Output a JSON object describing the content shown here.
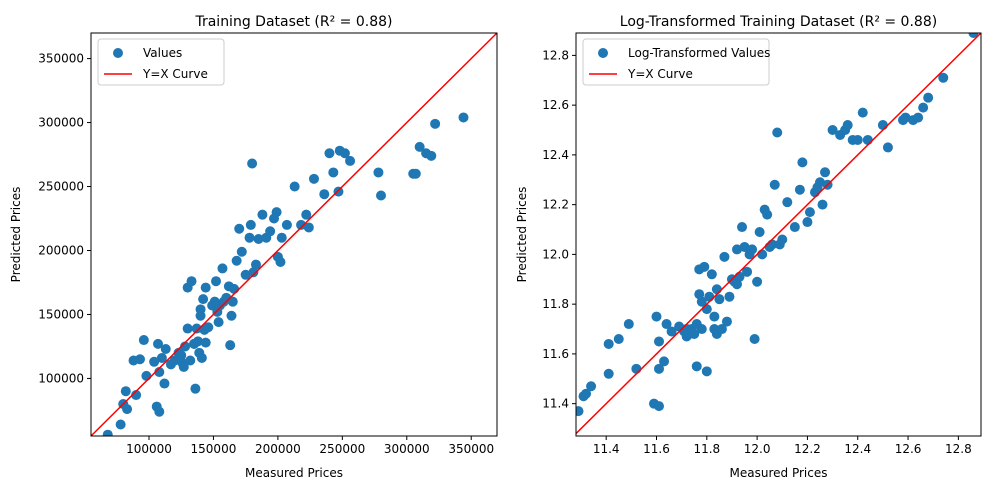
{
  "colors": {
    "points": "#1f77b4",
    "curve": "#ff0000",
    "legend_border": "#cccccc"
  },
  "chart_data": [
    {
      "type": "scatter",
      "title": "Training Dataset (R² = 0.88)",
      "xlabel": "Measured Prices",
      "ylabel": "Predicted Prices",
      "xlim": [
        55000,
        370000
      ],
      "ylim": [
        55000,
        370000
      ],
      "xticks": [
        100000,
        150000,
        200000,
        250000,
        300000,
        350000
      ],
      "yticks": [
        100000,
        150000,
        200000,
        250000,
        300000,
        350000
      ],
      "tick_labels_x": [
        "100000",
        "150000",
        "200000",
        "250000",
        "300000",
        "350000"
      ],
      "tick_labels_y": [
        "100000",
        "150000",
        "200000",
        "250000",
        "300000",
        "350000"
      ],
      "legend": {
        "placement": "top-left",
        "entries": [
          "Values",
          "Y=X Curve"
        ]
      },
      "series": [
        {
          "name": "Values",
          "points": [
            [
              68000,
              56000
            ],
            [
              78000,
              64000
            ],
            [
              80000,
              80000
            ],
            [
              82000,
              90000
            ],
            [
              83000,
              76000
            ],
            [
              88000,
              114000
            ],
            [
              90000,
              87000
            ],
            [
              93000,
              115000
            ],
            [
              96000,
              130000
            ],
            [
              98000,
              102000
            ],
            [
              104000,
              113000
            ],
            [
              106000,
              78000
            ],
            [
              107000,
              127000
            ],
            [
              108000,
              105000
            ],
            [
              108000,
              74000
            ],
            [
              110000,
              116000
            ],
            [
              112000,
              96000
            ],
            [
              113000,
              123000
            ],
            [
              117000,
              111000
            ],
            [
              120000,
              114000
            ],
            [
              123000,
              120000
            ],
            [
              125000,
              118000
            ],
            [
              126000,
              112000
            ],
            [
              127000,
              109000
            ],
            [
              128000,
              125000
            ],
            [
              130000,
              171000
            ],
            [
              130000,
              139000
            ],
            [
              132000,
              114000
            ],
            [
              133000,
              176000
            ],
            [
              135000,
              127000
            ],
            [
              135000,
              127000
            ],
            [
              136000,
              92000
            ],
            [
              137000,
              139000
            ],
            [
              138000,
              129000
            ],
            [
              139000,
              120000
            ],
            [
              140000,
              149000
            ],
            [
              140000,
              154000
            ],
            [
              141000,
              116000
            ],
            [
              142000,
              162000
            ],
            [
              143000,
              138000
            ],
            [
              144000,
              171000
            ],
            [
              144000,
              128000
            ],
            [
              146000,
              140000
            ],
            [
              149000,
              157000
            ],
            [
              151000,
              160000
            ],
            [
              152000,
              176000
            ],
            [
              153000,
              152000
            ],
            [
              154000,
              144000
            ],
            [
              155000,
              157000
            ],
            [
              157000,
              186000
            ],
            [
              158000,
              160000
            ],
            [
              160000,
              163000
            ],
            [
              162000,
              172000
            ],
            [
              163000,
              126000
            ],
            [
              164000,
              149000
            ],
            [
              165000,
              160000
            ],
            [
              166000,
              170000
            ],
            [
              168000,
              192000
            ],
            [
              170000,
              217000
            ],
            [
              172000,
              199000
            ],
            [
              175000,
              181000
            ],
            [
              178000,
              210000
            ],
            [
              179000,
              220000
            ],
            [
              180000,
              268000
            ],
            [
              181000,
              183000
            ],
            [
              183000,
              189000
            ],
            [
              185000,
              209000
            ],
            [
              188000,
              228000
            ],
            [
              191000,
              210000
            ],
            [
              194000,
              215000
            ],
            [
              197000,
              225000
            ],
            [
              199000,
              230000
            ],
            [
              200000,
              195000
            ],
            [
              202000,
              191000
            ],
            [
              203000,
              210000
            ],
            [
              207000,
              220000
            ],
            [
              213000,
              250000
            ],
            [
              218000,
              220000
            ],
            [
              222000,
              228000
            ],
            [
              224000,
              218000
            ],
            [
              228000,
              256000
            ],
            [
              236000,
              244000
            ],
            [
              240000,
              276000
            ],
            [
              243000,
              261000
            ],
            [
              247000,
              246000
            ],
            [
              248000,
              278000
            ],
            [
              252000,
              276000
            ],
            [
              256000,
              270000
            ],
            [
              278000,
              261000
            ],
            [
              280000,
              243000
            ],
            [
              305000,
              260000
            ],
            [
              307000,
              260000
            ],
            [
              310000,
              281000
            ],
            [
              315000,
              276000
            ],
            [
              319000,
              274000
            ],
            [
              322000,
              299000
            ],
            [
              344000,
              304000
            ]
          ]
        },
        {
          "name": "Y=X Curve",
          "line": [
            [
              55000,
              55000
            ],
            [
              370000,
              370000
            ]
          ]
        }
      ]
    },
    {
      "type": "scatter",
      "title": "Log-Transformed Training Dataset (R² = 0.88)",
      "xlabel": "Measured Prices",
      "ylabel": "Predicted Prices",
      "xlim": [
        11.28,
        12.89
      ],
      "ylim": [
        11.27,
        12.89
      ],
      "xticks": [
        11.4,
        11.6,
        11.8,
        12.0,
        12.2,
        12.4,
        12.6,
        12.8
      ],
      "yticks": [
        11.4,
        11.6,
        11.8,
        12.0,
        12.2,
        12.4,
        12.6,
        12.8
      ],
      "tick_labels_x": [
        "11.4",
        "11.6",
        "11.8",
        "12.0",
        "12.2",
        "12.4",
        "12.6",
        "12.8"
      ],
      "tick_labels_y": [
        "11.4",
        "11.6",
        "11.8",
        "12.0",
        "12.2",
        "12.4",
        "12.6",
        "12.8"
      ],
      "legend": {
        "placement": "top-left",
        "entries": [
          "Log-Transformed Values",
          "Y=X Curve"
        ]
      },
      "series": [
        {
          "name": "Log-Transformed Values",
          "points": [
            [
              11.29,
              11.37
            ],
            [
              11.31,
              11.43
            ],
            [
              11.32,
              11.44
            ],
            [
              11.34,
              11.47
            ],
            [
              11.41,
              11.64
            ],
            [
              11.41,
              11.52
            ],
            [
              11.45,
              11.66
            ],
            [
              11.49,
              11.72
            ],
            [
              11.52,
              11.54
            ],
            [
              11.59,
              11.4
            ],
            [
              11.6,
              11.75
            ],
            [
              11.61,
              11.39
            ],
            [
              11.61,
              11.65
            ],
            [
              11.61,
              11.54
            ],
            [
              11.63,
              11.57
            ],
            [
              11.64,
              11.72
            ],
            [
              11.66,
              11.69
            ],
            [
              11.69,
              11.71
            ],
            [
              11.71,
              11.69
            ],
            [
              11.72,
              11.7
            ],
            [
              11.72,
              11.67
            ],
            [
              11.73,
              11.68
            ],
            [
              11.74,
              11.7
            ],
            [
              11.75,
              11.68
            ],
            [
              11.76,
              11.72
            ],
            [
              11.76,
              11.55
            ],
            [
              11.77,
              11.84
            ],
            [
              11.77,
              11.94
            ],
            [
              11.78,
              11.7
            ],
            [
              11.78,
              11.81
            ],
            [
              11.79,
              11.95
            ],
            [
              11.8,
              11.53
            ],
            [
              11.8,
              11.78
            ],
            [
              11.81,
              11.83
            ],
            [
              11.82,
              11.92
            ],
            [
              11.83,
              11.75
            ],
            [
              11.83,
              11.7
            ],
            [
              11.84,
              11.86
            ],
            [
              11.84,
              11.68
            ],
            [
              11.85,
              11.82
            ],
            [
              11.86,
              11.7
            ],
            [
              11.87,
              11.99
            ],
            [
              11.88,
              11.73
            ],
            [
              11.89,
              11.83
            ],
            [
              11.9,
              11.9
            ],
            [
              11.91,
              11.89
            ],
            [
              11.92,
              12.02
            ],
            [
              11.92,
              11.88
            ],
            [
              11.93,
              11.91
            ],
            [
              11.94,
              12.11
            ],
            [
              11.95,
              12.03
            ],
            [
              11.96,
              11.93
            ],
            [
              11.97,
              12.0
            ],
            [
              11.98,
              12.02
            ],
            [
              11.99,
              11.66
            ],
            [
              12.0,
              11.89
            ],
            [
              12.01,
              12.09
            ],
            [
              12.02,
              12.0
            ],
            [
              12.03,
              12.18
            ],
            [
              12.04,
              12.16
            ],
            [
              12.05,
              12.03
            ],
            [
              12.06,
              12.04
            ],
            [
              12.07,
              12.28
            ],
            [
              12.08,
              12.49
            ],
            [
              12.09,
              12.04
            ],
            [
              12.1,
              12.06
            ],
            [
              12.12,
              12.21
            ],
            [
              12.15,
              12.11
            ],
            [
              12.17,
              12.26
            ],
            [
              12.18,
              12.37
            ],
            [
              12.2,
              12.13
            ],
            [
              12.21,
              12.17
            ],
            [
              12.23,
              12.25
            ],
            [
              12.24,
              12.27
            ],
            [
              12.25,
              12.29
            ],
            [
              12.26,
              12.2
            ],
            [
              12.27,
              12.33
            ],
            [
              12.28,
              12.28
            ],
            [
              12.3,
              12.5
            ],
            [
              12.33,
              12.48
            ],
            [
              12.35,
              12.5
            ],
            [
              12.36,
              12.52
            ],
            [
              12.38,
              12.46
            ],
            [
              12.4,
              12.46
            ],
            [
              12.42,
              12.57
            ],
            [
              12.44,
              12.46
            ],
            [
              12.5,
              12.52
            ],
            [
              12.52,
              12.43
            ],
            [
              12.58,
              12.54
            ],
            [
              12.59,
              12.55
            ],
            [
              12.62,
              12.54
            ],
            [
              12.64,
              12.55
            ],
            [
              12.66,
              12.59
            ],
            [
              12.68,
              12.63
            ],
            [
              12.74,
              12.71
            ],
            [
              12.86,
              12.89
            ]
          ]
        },
        {
          "name": "Y=X Curve",
          "line": [
            [
              11.27,
              11.27
            ],
            [
              12.89,
              12.89
            ]
          ]
        }
      ]
    }
  ]
}
